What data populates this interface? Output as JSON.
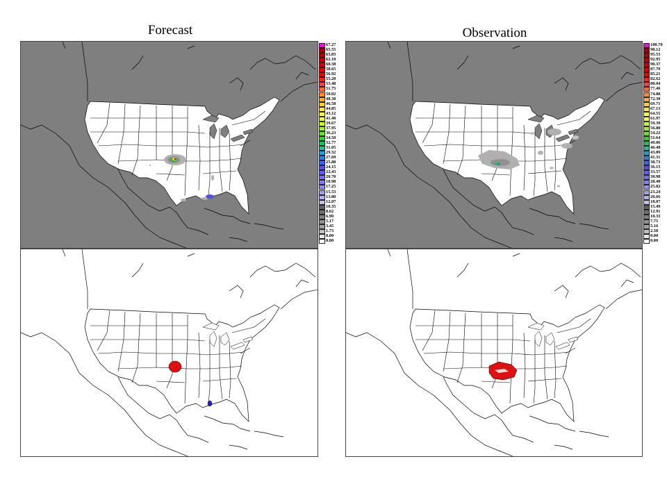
{
  "titles": {
    "forecast": "Forecast",
    "observation": "Observation"
  },
  "colors": {
    "ocean": "#808080",
    "land": "#ffffff",
    "border": "#000000",
    "object_fill": "#e01010",
    "object_blue": "#2020c0"
  },
  "legends": {
    "forecast": {
      "values": [
        "67.27",
        "65.55",
        "63.83",
        "62.10",
        "60.38",
        "58.65",
        "56.92",
        "55.20",
        "53.48",
        "51.75",
        "50.02",
        "48.30",
        "46.58",
        "44.85",
        "43.12",
        "41.40",
        "39.67",
        "37.95",
        "36.23",
        "34.50",
        "32.77",
        "31.05",
        "29.32",
        "27.60",
        "25.88",
        "24.15",
        "22.43",
        "20.70",
        "18.98",
        "17.25",
        "15.53",
        "13.80",
        "12.07",
        "10.35",
        "8.62",
        "6.90",
        "5.17",
        "3.45",
        "1.73",
        "0.00",
        "0.00"
      ],
      "colors": [
        "#ff00ff",
        "#a00000",
        "#b00000",
        "#c00000",
        "#d00000",
        "#e00000",
        "#f00000",
        "#ff2020",
        "#ff4040",
        "#ff6a30",
        "#ff9030",
        "#ffb030",
        "#ffd030",
        "#ffee30",
        "#ffff40",
        "#eeff30",
        "#ccff20",
        "#a0f020",
        "#70e020",
        "#30d030",
        "#20c060",
        "#20c0a0",
        "#20a0d0",
        "#3080e0",
        "#4060f0",
        "#5050f0",
        "#6060f0",
        "#7070f0",
        "#8080f0",
        "#9090f0",
        "#a0a0f0",
        "#b0b0f0",
        "#c0c0f0",
        "#606060",
        "#707070",
        "#808080",
        "#909090",
        "#a0a0a0",
        "#c0c0c0",
        "#e8e8e8",
        "#ffffff"
      ]
    },
    "observation": {
      "values": [
        "100.70",
        "98.12",
        "95.53",
        "92.95",
        "90.37",
        "87.79",
        "85.21",
        "82.62",
        "80.04",
        "77.46",
        "74.88",
        "72.30",
        "69.71",
        "67.13",
        "64.55",
        "61.97",
        "59.39",
        "56.80",
        "54.22",
        "51.64",
        "49.06",
        "46.48",
        "43.89",
        "41.31",
        "38.73",
        "36.15",
        "33.57",
        "30.98",
        "28.40",
        "25.82",
        "23.24",
        "20.66",
        "18.07",
        "15.49",
        "12.91",
        "10.33",
        "7.75",
        "5.16",
        "2.58",
        "0.00",
        "0.00"
      ],
      "colors": [
        "#ff00ff",
        "#a00000",
        "#b00000",
        "#c00000",
        "#d00000",
        "#e00000",
        "#f00000",
        "#ff2020",
        "#ff4040",
        "#ff6a30",
        "#ff9030",
        "#ffb030",
        "#ffd030",
        "#ffee30",
        "#ffff40",
        "#eeff30",
        "#ccff20",
        "#a0f020",
        "#70e020",
        "#30d030",
        "#20c060",
        "#20c0a0",
        "#20a0d0",
        "#3080e0",
        "#4060f0",
        "#5050f0",
        "#6060f0",
        "#7070f0",
        "#8080f0",
        "#9090f0",
        "#a0a0f0",
        "#b0b0f0",
        "#c0c0f0",
        "#606060",
        "#707070",
        "#808080",
        "#909090",
        "#a0a0a0",
        "#c0c0c0",
        "#e8e8e8",
        "#ffffff"
      ]
    }
  }
}
